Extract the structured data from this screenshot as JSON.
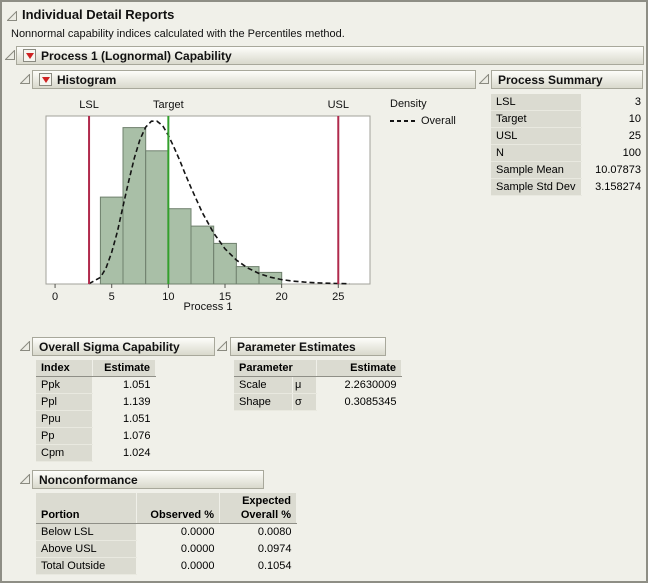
{
  "report": {
    "title": "Individual Detail Reports",
    "subtitle": "Nonnormal capability indices calculated with the Percentiles method."
  },
  "process_section": {
    "title": "Process 1 (Lognormal) Capability"
  },
  "histogram_section": {
    "title": "Histogram"
  },
  "process_summary": {
    "title": "Process Summary",
    "rows": [
      {
        "label": "LSL",
        "value": "3"
      },
      {
        "label": "Target",
        "value": "10"
      },
      {
        "label": "USL",
        "value": "25"
      },
      {
        "label": "N",
        "value": "100"
      },
      {
        "label": "Sample Mean",
        "value": "10.07873"
      },
      {
        "label": "Sample Std Dev",
        "value": "3.158274"
      }
    ]
  },
  "overall_sigma": {
    "title": "Overall Sigma Capability",
    "headers": {
      "index": "Index",
      "estimate": "Estimate"
    },
    "rows": [
      {
        "index": "Ppk",
        "estimate": "1.051"
      },
      {
        "index": "Ppl",
        "estimate": "1.139"
      },
      {
        "index": "Ppu",
        "estimate": "1.051"
      },
      {
        "index": "Pp",
        "estimate": "1.076"
      },
      {
        "index": "Cpm",
        "estimate": "1.024"
      }
    ]
  },
  "parameter_estimates": {
    "title": "Parameter Estimates",
    "headers": {
      "parameter": "Parameter",
      "estimate": "Estimate"
    },
    "rows": [
      {
        "parameter": "Scale",
        "symbol": "μ",
        "estimate": "2.2630009"
      },
      {
        "parameter": "Shape",
        "symbol": "σ",
        "estimate": "0.3085345"
      }
    ]
  },
  "nonconformance": {
    "title": "Nonconformance",
    "headers": {
      "portion": "Portion",
      "observed": "Observed %",
      "expected_line1": "Expected",
      "expected_line2": "Overall %"
    },
    "rows": [
      {
        "portion": "Below LSL",
        "observed": "0.0000",
        "expected": "0.0080"
      },
      {
        "portion": "Above USL",
        "observed": "0.0000",
        "expected": "0.0974"
      },
      {
        "portion": "Total Outside",
        "observed": "0.0000",
        "expected": "0.1054"
      }
    ]
  },
  "chart_data": {
    "type": "histogram",
    "title": "",
    "xlabel": "Process 1",
    "ylabel": "Density",
    "x_ticks": [
      0,
      5,
      10,
      15,
      20,
      25
    ],
    "xlim": [
      -0.8,
      27.8
    ],
    "ylim": [
      0,
      0.145
    ],
    "grid": false,
    "n_total": 100,
    "bins": {
      "start": 4,
      "width": 2,
      "counts": [
        15,
        27,
        23,
        13,
        10,
        7,
        3,
        2
      ]
    },
    "bar_fill": "#a9bfa7",
    "bar_stroke": "#6f806d",
    "curve_color": "#141414",
    "reference_lines": [
      {
        "label": "LSL",
        "x": 3,
        "color": "#b02a4c"
      },
      {
        "label": "Target",
        "x": 10,
        "color": "#33a02c"
      },
      {
        "label": "USL",
        "x": 25,
        "color": "#b02a4c"
      }
    ],
    "density_curve": {
      "name": "Overall",
      "style": "dashed",
      "distribution": "lognormal(mu=2.2630009, sigma=0.3085345)",
      "points": [
        [
          3,
          0.0003
        ],
        [
          4,
          0.0057
        ],
        [
          4.5,
          0.0137
        ],
        [
          5,
          0.0274
        ],
        [
          5.5,
          0.0452
        ],
        [
          6,
          0.0671
        ],
        [
          6.5,
          0.0887
        ],
        [
          7,
          0.1089
        ],
        [
          7.5,
          0.1248
        ],
        [
          8,
          0.1354
        ],
        [
          8.5,
          0.1405
        ],
        [
          9,
          0.1405
        ],
        [
          9.5,
          0.1366
        ],
        [
          10,
          0.1283
        ],
        [
          10.5,
          0.118
        ],
        [
          11,
          0.1068
        ],
        [
          11.5,
          0.0948
        ],
        [
          12,
          0.0832
        ],
        [
          13,
          0.0616
        ],
        [
          14,
          0.0439
        ],
        [
          15,
          0.0304
        ],
        [
          16,
          0.0207
        ],
        [
          17,
          0.0138
        ],
        [
          18,
          0.0091
        ],
        [
          19,
          0.0059
        ],
        [
          20,
          0.0038
        ],
        [
          21,
          0.0025
        ],
        [
          22,
          0.0016
        ],
        [
          23,
          0.001
        ],
        [
          24,
          0.0007
        ],
        [
          25,
          0.0004
        ],
        [
          26,
          0.0003
        ]
      ]
    },
    "legend": {
      "title": "Density",
      "position": "right",
      "entries": [
        {
          "label": "Overall",
          "line_style": "dashed"
        }
      ]
    }
  }
}
